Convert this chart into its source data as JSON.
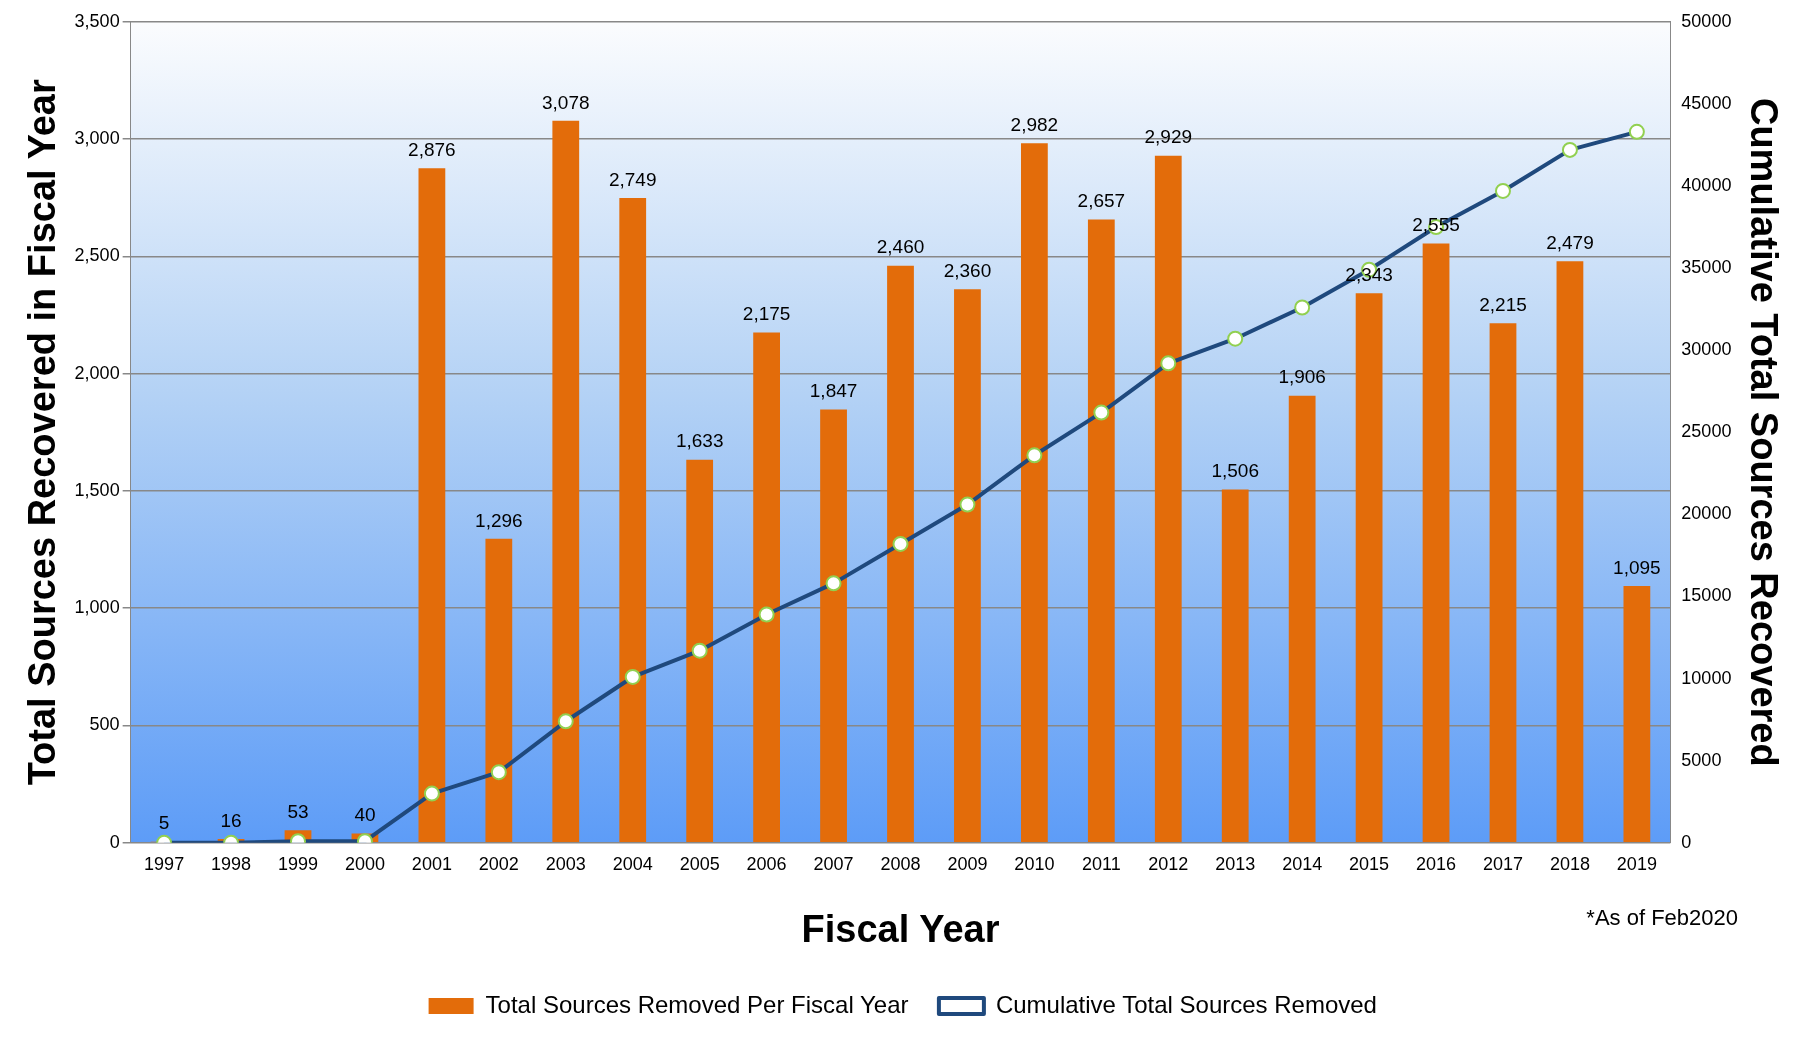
{
  "chart_data": {
    "type": "bar",
    "xlabel": "Fiscal Year",
    "ylabel": "Total Sources Recovered in Fiscal Year",
    "y2label": "Cumulative Total Sources Recovered",
    "categories": [
      "1997",
      "1998",
      "1999",
      "2000",
      "2001",
      "2002",
      "2003",
      "2004",
      "2005",
      "2006",
      "2007",
      "2008",
      "2009",
      "2010",
      "2011",
      "2012",
      "2013",
      "2014",
      "2015",
      "2016",
      "2017",
      "2018",
      "2019"
    ],
    "series": [
      {
        "name": "Total Sources Removed Per Fiscal Year",
        "color": "#e36c0a",
        "values": [
          5,
          16,
          53,
          40,
          2876,
          1296,
          3078,
          2749,
          1633,
          2175,
          1847,
          2460,
          2360,
          2982,
          2657,
          2929,
          1506,
          1906,
          2343,
          2555,
          2215,
          2479,
          1095
        ],
        "value_labels": [
          "5",
          "16",
          "53",
          "40",
          "2,876",
          "1,296",
          "3,078",
          "2,749",
          "1,633",
          "2,175",
          "1,847",
          "2,460",
          "2,360",
          "2,982",
          "2,657",
          "2,929",
          "1,506",
          "1,906",
          "2,343",
          "2,555",
          "2,215",
          "2,479",
          "1,095"
        ]
      },
      {
        "name": "Cumulative Total Sources Removed",
        "type": "line",
        "axis": "y2",
        "color": "#1f497d",
        "marker": "circle",
        "values": [
          0,
          0,
          100,
          100,
          3000,
          4300,
          7400,
          10100,
          11700,
          13900,
          15800,
          18200,
          20600,
          23600,
          26200,
          29200,
          30700,
          32600,
          34900,
          37500,
          39700,
          42200,
          43300
        ]
      }
    ],
    "ylim": [
      0,
      3500
    ],
    "yticks": [
      {
        "value": 0,
        "label": "0"
      },
      {
        "value": 500,
        "label": "500"
      },
      {
        "value": 1000,
        "label": "1,000"
      },
      {
        "value": 1500,
        "label": "1,500"
      },
      {
        "value": 2000,
        "label": "2,000"
      },
      {
        "value": 2500,
        "label": "2,500"
      },
      {
        "value": 3000,
        "label": "3,000"
      },
      {
        "value": 3500,
        "label": "3,500"
      }
    ],
    "y2lim": [
      0,
      50000
    ],
    "y2ticks": [
      0,
      5000,
      10000,
      15000,
      20000,
      25000,
      30000,
      35000,
      40000,
      45000,
      50000
    ],
    "grid": "y",
    "legend": "bottom",
    "annotations": [
      "*As of Feb2020"
    ]
  }
}
